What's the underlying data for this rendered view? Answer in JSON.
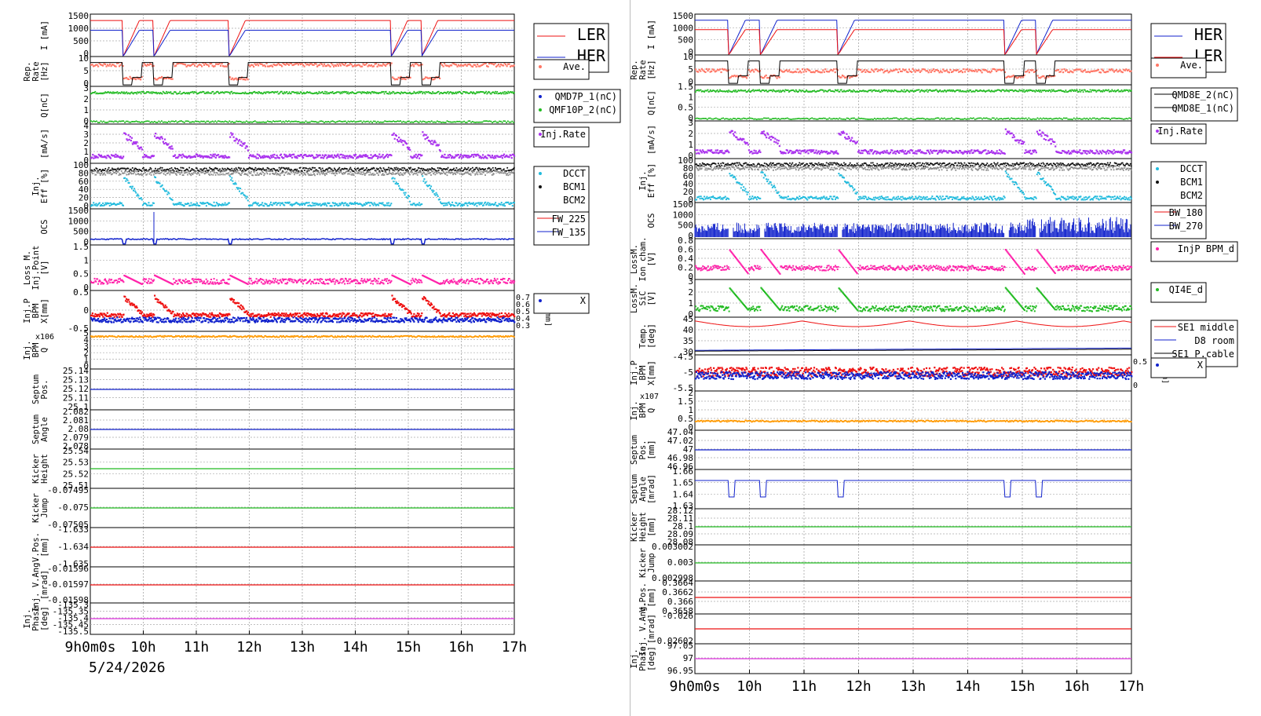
{
  "date_label": "5/24/2026",
  "time_ticks": [
    "9h0m0s",
    "10h",
    "11h",
    "12h",
    "13h",
    "14h",
    "15h",
    "16h",
    "17h"
  ],
  "colors": {
    "ler": "#e11",
    "her": "#12c",
    "rep": "#f76",
    "green": "#2b2",
    "purple": "#a3e",
    "cyan": "#2bd",
    "gray": "#888",
    "pink": "#f2a",
    "orange": "#f90",
    "magenta": "#d3d"
  },
  "left": {
    "panels": [
      {
        "ylabel": [
          "I [mA]"
        ],
        "ticks": [
          "1500",
          "1000",
          "500",
          "0"
        ],
        "legend": [
          "LER",
          "HER"
        ]
      },
      {
        "ylabel": [
          "Rep.",
          "Rate",
          "[Hz]"
        ],
        "ticks": [
          "10",
          "5",
          "0"
        ],
        "legend": [
          "Ave."
        ]
      },
      {
        "ylabel": [
          "Q[nC]"
        ],
        "ticks": [
          "3",
          "2",
          "1",
          "0"
        ],
        "legend": [
          "QMD7P_1(nC)",
          "QMF10P_2(nC)"
        ]
      },
      {
        "ylabel": [
          "[mA/s]"
        ],
        "ticks": [
          "4",
          "3",
          "2",
          "1",
          "0"
        ],
        "legend": [
          "Inj.Rate"
        ]
      },
      {
        "ylabel": [
          "Inj.",
          "Eff [%]"
        ],
        "ticks": [
          "100",
          "80",
          "60",
          "40",
          "20",
          "0"
        ],
        "legend": [
          "DCCT",
          "BCM1",
          "BCM2"
        ]
      },
      {
        "ylabel": [
          "OCS"
        ],
        "ticks": [
          "1500",
          "1000",
          "500",
          "0"
        ],
        "legend": [
          "FW_225",
          "FW_135"
        ]
      },
      {
        "ylabel": [
          "Loss M.",
          "Inj.Point",
          "[V]"
        ],
        "ticks": [
          "1.5",
          "1",
          "0.5",
          "0"
        ],
        "legend": []
      },
      {
        "ylabel": [
          "Inj.P",
          "BPM",
          "X[mm]"
        ],
        "ticks": [
          "0.5",
          "0",
          "-0.5"
        ],
        "legend": [
          "X"
        ],
        "right_ticks": [
          "0.7",
          "0.6",
          "0.5",
          "0.4",
          "0.3"
        ],
        "right_label": "Y[mm]"
      },
      {
        "ylabel": [
          "Inj.",
          "BPM",
          "Q"
        ],
        "ticks": [
          "5",
          "4",
          "3",
          "2",
          "1",
          "0"
        ],
        "legend": [],
        "exp": "x10^6"
      },
      {
        "ylabel": [
          "Septum",
          "Pos."
        ],
        "ticks": [
          "25.14",
          "25.13",
          "25.12",
          "25.11",
          "25.1"
        ],
        "legend": []
      },
      {
        "ylabel": [
          "Septum",
          "Angle"
        ],
        "ticks": [
          "2.082",
          "2.081",
          "2.08",
          "2.079",
          "2.078"
        ],
        "legend": []
      },
      {
        "ylabel": [
          "Kicker",
          "Height"
        ],
        "ticks": [
          "25.54",
          "25.53",
          "25.52",
          "25.51"
        ],
        "legend": []
      },
      {
        "ylabel": [
          "Kicker",
          "Jump"
        ],
        "ticks": [
          "-0.07495",
          "-0.075",
          "-0.07505"
        ],
        "legend": []
      },
      {
        "ylabel": [
          "V.Pos.",
          "[mm]"
        ],
        "ticks": [
          "-1.633",
          "-1.634",
          "-1.635"
        ],
        "legend": []
      },
      {
        "ylabel": [
          "Inj. V.Ang.",
          "[mrad]"
        ],
        "ticks": [
          "-0.01596",
          "-0.01597",
          "-0.01598"
        ],
        "legend": []
      },
      {
        "ylabel": [
          "Inj.",
          "Phase",
          "[deg]"
        ],
        "ticks": [
          "-135.3",
          "-135.35",
          "-135.4",
          "-135.45",
          "-135.5"
        ],
        "legend": []
      }
    ]
  },
  "right": {
    "panels": [
      {
        "ylabel": [
          "I [mA]"
        ],
        "ticks": [
          "1500",
          "1000",
          "500",
          "0"
        ],
        "legend": [
          "HER",
          "LER"
        ]
      },
      {
        "ylabel": [
          "Rep.",
          "Rate",
          "[Hz]"
        ],
        "ticks": [
          "10",
          "5",
          "0"
        ],
        "legend": [
          "Ave."
        ]
      },
      {
        "ylabel": [
          "Q[nC]"
        ],
        "ticks": [
          "1.5",
          "1",
          "0.5",
          "0"
        ],
        "legend": [
          "QMD8E_2(nC)",
          "QMD8E_1(nC)"
        ]
      },
      {
        "ylabel": [
          "[mA/s]"
        ],
        "ticks": [
          "3",
          "2",
          "1",
          "0"
        ],
        "legend": [
          "Inj.Rate"
        ]
      },
      {
        "ylabel": [
          "Inj.",
          "Eff [%]"
        ],
        "ticks": [
          "100",
          "80",
          "60",
          "40",
          "20",
          "0"
        ],
        "legend": [
          "DCCT",
          "BCM1",
          "BCM2"
        ]
      },
      {
        "ylabel": [
          "OCS"
        ],
        "ticks": [
          "1500",
          "1000",
          "500",
          "0"
        ],
        "legend": [
          "BW_180",
          "BW_270"
        ]
      },
      {
        "ylabel": [
          "LossM.",
          "Ion cham.",
          "[V]"
        ],
        "ticks": [
          "0.8",
          "0.6",
          "0.4",
          "0.2",
          "0"
        ],
        "legend": [
          "InjP BPM_d"
        ]
      },
      {
        "ylabel": [
          "LossM.",
          "SiC",
          "[V]"
        ],
        "ticks": [
          "3",
          "2",
          "1",
          "0"
        ],
        "legend": [
          "QI4E_d"
        ]
      },
      {
        "ylabel": [
          "Temp.",
          "[deg]"
        ],
        "ticks": [
          "45",
          "40",
          "35",
          "30"
        ],
        "legend": [
          "SE1 middle",
          "D8 room",
          "SE1 P.cable"
        ]
      },
      {
        "ylabel": [
          "Inj.P",
          "BPM",
          "X[mm]"
        ],
        "ticks": [
          "-4.5",
          "-5",
          "-5.5"
        ],
        "legend": [
          "X"
        ],
        "right_ticks": [
          "0.5",
          "0"
        ],
        "right_label": "[mm]"
      },
      {
        "ylabel": [
          "Inj.",
          "BPM",
          "Q"
        ],
        "ticks": [
          "2",
          "1.5",
          "1",
          "0.5",
          "0"
        ],
        "legend": [],
        "exp": "x10^7"
      },
      {
        "ylabel": [
          "Septum",
          "Pos.",
          "[mm]"
        ],
        "ticks": [
          "47.04",
          "47.02",
          "47",
          "46.98",
          "46.96"
        ],
        "legend": []
      },
      {
        "ylabel": [
          "Septum",
          "Angle",
          "[mrad]"
        ],
        "ticks": [
          "1.66",
          "1.65",
          "1.64",
          "1.63"
        ],
        "legend": []
      },
      {
        "ylabel": [
          "Kicker",
          "Height",
          "[mm]"
        ],
        "ticks": [
          "28.12",
          "28.11",
          "28.1",
          "28.09",
          "28.08"
        ],
        "legend": []
      },
      {
        "ylabel": [
          "Kicker",
          "Jump"
        ],
        "ticks": [
          "0.003002",
          "0.003",
          "0.002998"
        ],
        "legend": []
      },
      {
        "ylabel": [
          "V.Pos.",
          "[mm]"
        ],
        "ticks": [
          "0.3664",
          "0.3662",
          "0.366",
          "0.3658"
        ],
        "legend": []
      },
      {
        "ylabel": [
          "Inj. V.Ang.",
          "[mrad]"
        ],
        "ticks": [
          "-0.026",
          "-0.02602"
        ],
        "legend": []
      },
      {
        "ylabel": [
          "Inj.",
          "Phase",
          "[deg]"
        ],
        "ticks": [
          "97.05",
          "97",
          "96.95"
        ],
        "legend": []
      }
    ]
  },
  "chart_data": [
    {
      "type": "line",
      "x": [
        "9h",
        "10h",
        "11h",
        "12h",
        "13h",
        "14h",
        "15h",
        "16h",
        "17h"
      ],
      "series": [
        {
          "name": "LER",
          "approx_level_mA": 1550
        },
        {
          "name": "HER",
          "approx_level_mA": 1150
        }
      ],
      "xlabel": "",
      "ylabel": "I [mA]"
    },
    {
      "type": "line",
      "x": [
        "9h",
        "10h",
        "11h",
        "12h",
        "13h",
        "14h",
        "15h",
        "16h",
        "17h"
      ],
      "series": [
        {
          "name": "HER",
          "approx_level_mA": 1150
        },
        {
          "name": "LER",
          "approx_level_mA": 1550
        }
      ],
      "xlabel": "",
      "ylabel": "I [mA]"
    }
  ]
}
